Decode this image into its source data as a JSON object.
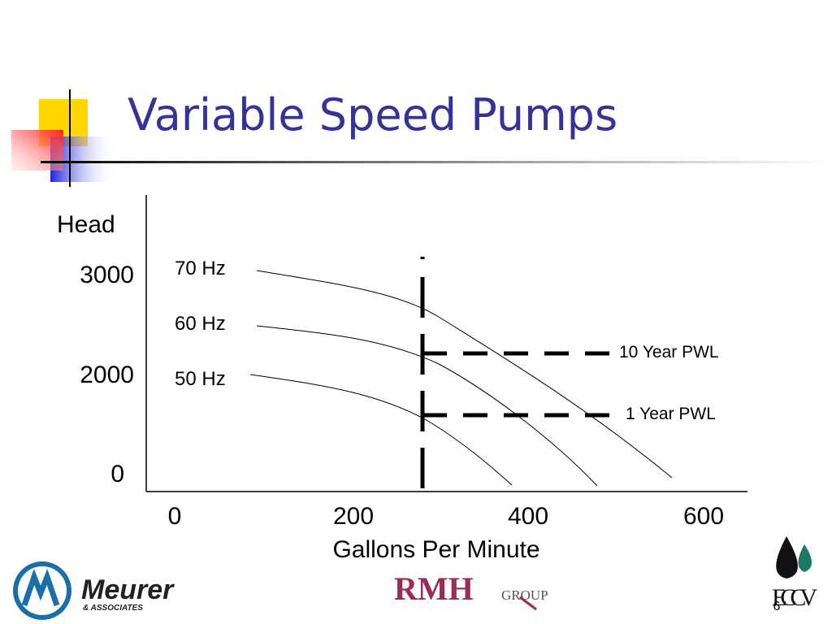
{
  "slide": {
    "title": "Variable Speed Pumps",
    "y_axis_label": "Head",
    "y_tick_labels": [
      3000,
      2000,
      0
    ],
    "x_tick_labels": [
      0,
      200,
      400,
      600
    ],
    "x_axis_label": "Gallons Per Minute",
    "curve_labels": [
      "70 Hz",
      "60 Hz",
      "50 Hz"
    ],
    "line_labels": [
      "10 Year PWL",
      "1 Year PWL"
    ],
    "logos": {
      "meurer": "Meurer",
      "meurer_sub": "& ASSOCIATES",
      "rmh": "RMH",
      "rmh_sub": "GROUP",
      "eccv": "ECCV"
    },
    "page_number": 6
  }
}
